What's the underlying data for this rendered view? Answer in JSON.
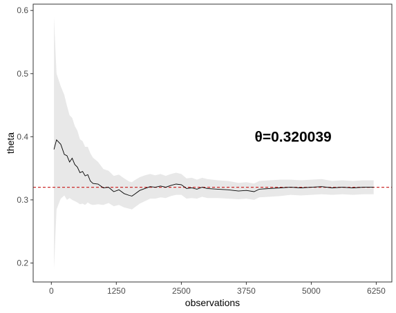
{
  "chart_data": {
    "type": "line",
    "xlabel": "observations",
    "ylabel": "theta",
    "xlim": [
      -350,
      6550
    ],
    "ylim": [
      0.17,
      0.61
    ],
    "x_ticks": [
      0,
      1250,
      2500,
      3750,
      5000,
      6250
    ],
    "x_tick_labels": [
      "0",
      "1250",
      "2500",
      "3750",
      "5000",
      "6250"
    ],
    "y_ticks": [
      0.2,
      0.3,
      0.4,
      0.5,
      0.6
    ],
    "y_tick_labels": [
      "0.2",
      "0.3",
      "0.4",
      "0.5",
      "0.6"
    ],
    "grid": false,
    "annotation": "θ=0.320039",
    "reference_line": {
      "y": 0.320039,
      "style": "dashed",
      "color": "#cc2b2b"
    },
    "colors": {
      "line": "#000000",
      "band": "#e8e8e8",
      "reference": "#cc2b2b",
      "axis": "#333333"
    },
    "series": [
      {
        "x": [
          50,
          100,
          180,
          250,
          300,
          350,
          400,
          450,
          500,
          550,
          600,
          650,
          700,
          750,
          800,
          900,
          1000,
          1100,
          1200,
          1300,
          1400,
          1500,
          1550,
          1600,
          1700,
          1800,
          1900,
          2000,
          2100,
          2200,
          2300,
          2400,
          2500,
          2600,
          2700,
          2800,
          2900,
          3000,
          3200,
          3400,
          3600,
          3750,
          3900,
          4000,
          4200,
          4400,
          4600,
          4800,
          5000,
          5200,
          5400,
          5600,
          5800,
          6000,
          6200
        ],
        "y": [
          0.38,
          0.395,
          0.388,
          0.372,
          0.37,
          0.36,
          0.366,
          0.356,
          0.352,
          0.343,
          0.345,
          0.338,
          0.34,
          0.33,
          0.326,
          0.325,
          0.319,
          0.32,
          0.313,
          0.316,
          0.31,
          0.307,
          0.306,
          0.309,
          0.315,
          0.318,
          0.321,
          0.32,
          0.322,
          0.32,
          0.323,
          0.325,
          0.324,
          0.318,
          0.319,
          0.317,
          0.32,
          0.318,
          0.317,
          0.316,
          0.314,
          0.315,
          0.313,
          0.317,
          0.318,
          0.319,
          0.32,
          0.319,
          0.32,
          0.321,
          0.319,
          0.32,
          0.319,
          0.32,
          0.32
        ],
        "lower": [
          0.19,
          0.285,
          0.302,
          0.307,
          0.3,
          0.303,
          0.3,
          0.298,
          0.296,
          0.293,
          0.294,
          0.292,
          0.296,
          0.293,
          0.292,
          0.293,
          0.292,
          0.295,
          0.29,
          0.292,
          0.288,
          0.286,
          0.285,
          0.288,
          0.294,
          0.298,
          0.302,
          0.302,
          0.304,
          0.303,
          0.306,
          0.308,
          0.308,
          0.302,
          0.303,
          0.302,
          0.305,
          0.303,
          0.303,
          0.302,
          0.301,
          0.302,
          0.3,
          0.304,
          0.305,
          0.306,
          0.308,
          0.307,
          0.308,
          0.309,
          0.308,
          0.309,
          0.308,
          0.309,
          0.309
        ],
        "upper": [
          0.59,
          0.5,
          0.48,
          0.466,
          0.449,
          0.434,
          0.43,
          0.417,
          0.41,
          0.396,
          0.393,
          0.384,
          0.384,
          0.374,
          0.367,
          0.36,
          0.349,
          0.346,
          0.338,
          0.34,
          0.334,
          0.329,
          0.328,
          0.331,
          0.336,
          0.339,
          0.341,
          0.339,
          0.341,
          0.338,
          0.341,
          0.343,
          0.341,
          0.334,
          0.335,
          0.332,
          0.335,
          0.333,
          0.331,
          0.33,
          0.327,
          0.328,
          0.326,
          0.33,
          0.331,
          0.332,
          0.332,
          0.331,
          0.332,
          0.333,
          0.33,
          0.331,
          0.33,
          0.331,
          0.331
        ]
      }
    ]
  }
}
